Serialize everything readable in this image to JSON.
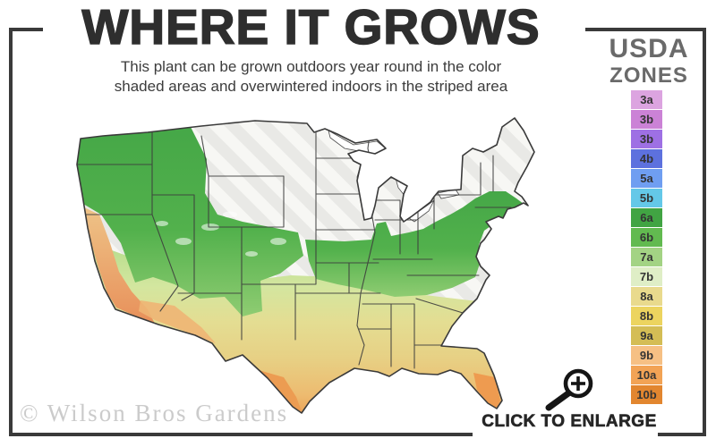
{
  "header": {
    "title": "WHERE IT GROWS",
    "subtitle_line1": "This plant can be grown outdoors year round in the color",
    "subtitle_line2": "shaded areas and overwintered indoors in the striped area"
  },
  "legend": {
    "title_line1": "USDA",
    "title_line2": "ZONES",
    "zones": [
      {
        "label": "3a",
        "color": "#dca4e0"
      },
      {
        "label": "3b",
        "color": "#cb82d6"
      },
      {
        "label": "3b",
        "color": "#9e70e4"
      },
      {
        "label": "4b",
        "color": "#5d71de"
      },
      {
        "label": "5a",
        "color": "#6f9ef1"
      },
      {
        "label": "5b",
        "color": "#64c8e8"
      },
      {
        "label": "6a",
        "color": "#41a443"
      },
      {
        "label": "6b",
        "color": "#62ba50"
      },
      {
        "label": "7a",
        "color": "#a3d384"
      },
      {
        "label": "7b",
        "color": "#dfeec6"
      },
      {
        "label": "8a",
        "color": "#e9da8d"
      },
      {
        "label": "8b",
        "color": "#ecd45f"
      },
      {
        "label": "9a",
        "color": "#d4bd55"
      },
      {
        "label": "9b",
        "color": "#f6c084"
      },
      {
        "label": "10a",
        "color": "#f2a355"
      },
      {
        "label": "10b",
        "color": "#e2862f"
      }
    ]
  },
  "map": {
    "watermark": "© Wilson Bros Gardens",
    "palette": {
      "striped_overwinter_area": "#e9e9e6",
      "cool_green": "#45a747",
      "mid_yellow_green": "#d3e69f",
      "warm_tan": "#e7d084",
      "hot_orange": "#e8943f",
      "state_border": "#3d3d3d",
      "frame": "#3a3a3a"
    }
  },
  "footer": {
    "enlarge_label": "CLICK TO ENLARGE",
    "icon": "magnifier-plus"
  }
}
